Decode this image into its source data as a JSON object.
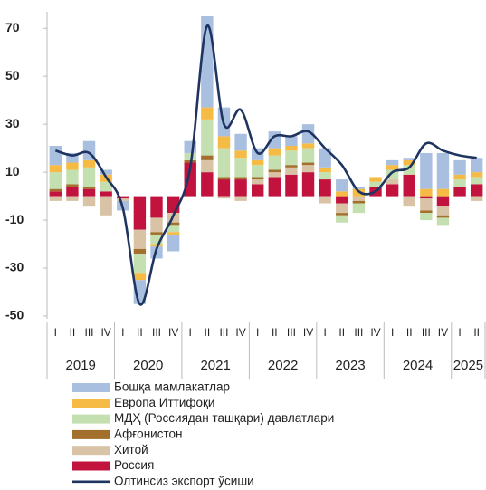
{
  "chart_data": {
    "type": "stacked_bar_line",
    "categories": [
      "I",
      "II",
      "III",
      "IV",
      "I",
      "II",
      "III",
      "IV",
      "I",
      "II",
      "III",
      "IV",
      "I",
      "II",
      "III",
      "IV",
      "I",
      "II",
      "III",
      "IV",
      "I",
      "II",
      "III",
      "IV",
      "I",
      "II"
    ],
    "years": [
      "2019",
      "2020",
      "2021",
      "2022",
      "2023",
      "2024",
      "2025"
    ],
    "ylim": [
      -50,
      75
    ],
    "yticks": [
      70,
      50,
      30,
      10,
      -10,
      -30,
      -50
    ],
    "series": [
      {
        "name": "Россия",
        "color": "#c2133f",
        "values": [
          2,
          4,
          3,
          2,
          -1,
          -14,
          -9,
          -7,
          14,
          10,
          7,
          7,
          5,
          8,
          9,
          10,
          7,
          -3,
          0,
          4,
          5,
          9,
          -1,
          -4,
          4,
          5
        ]
      },
      {
        "name": "Хитой",
        "color": "#d8c3a6",
        "values": [
          -2,
          -2,
          -4,
          -8,
          -1,
          -8,
          -6,
          -4,
          0,
          5,
          -1,
          -2,
          2,
          2,
          3,
          3,
          -3,
          -4,
          -2,
          0,
          2,
          -4,
          -5,
          -4,
          0,
          -2
        ]
      },
      {
        "name": "Афғонистон",
        "color": "#a26f2d",
        "values": [
          1,
          1,
          1,
          0,
          0,
          -2,
          -1,
          -1,
          1,
          2,
          1,
          1,
          1,
          1,
          1,
          1,
          0,
          -1,
          -1,
          0,
          0,
          0,
          -1,
          -1,
          0,
          0
        ]
      },
      {
        "name": "МДҲ (Россиядан ташқари) давлатлари",
        "color": "#c5e0b0",
        "values": [
          7,
          6,
          8,
          4,
          0,
          -8,
          -4,
          -3,
          3,
          15,
          12,
          8,
          5,
          6,
          6,
          6,
          3,
          -3,
          -4,
          2,
          4,
          4,
          -3,
          -3,
          3,
          3
        ]
      },
      {
        "name": "Европа Иттифоқи",
        "color": "#f6bb45",
        "values": [
          3,
          3,
          3,
          3,
          0,
          -3,
          -1,
          -1,
          0,
          5,
          5,
          3,
          2,
          3,
          2,
          2,
          2,
          2,
          3,
          2,
          2,
          2,
          3,
          3,
          2,
          2
        ]
      },
      {
        "name": "Бошқа мамлакатлар",
        "color": "#a9bfe0",
        "values": [
          8,
          4,
          8,
          2,
          -4,
          -10,
          -5,
          -7,
          5,
          38,
          12,
          7,
          5,
          7,
          4,
          8,
          8,
          5,
          1,
          0,
          2,
          1,
          15,
          15,
          6,
          6
        ]
      }
    ],
    "line": {
      "name": "Олтинсиз экспорт ўсиши",
      "color": "#1f3460",
      "values": [
        19,
        17,
        18,
        8,
        -5,
        -45,
        -22,
        -8,
        12,
        71,
        30,
        36,
        18,
        25,
        25,
        27,
        20,
        13,
        2,
        2,
        10,
        12,
        22,
        19,
        17,
        16
      ]
    }
  }
}
